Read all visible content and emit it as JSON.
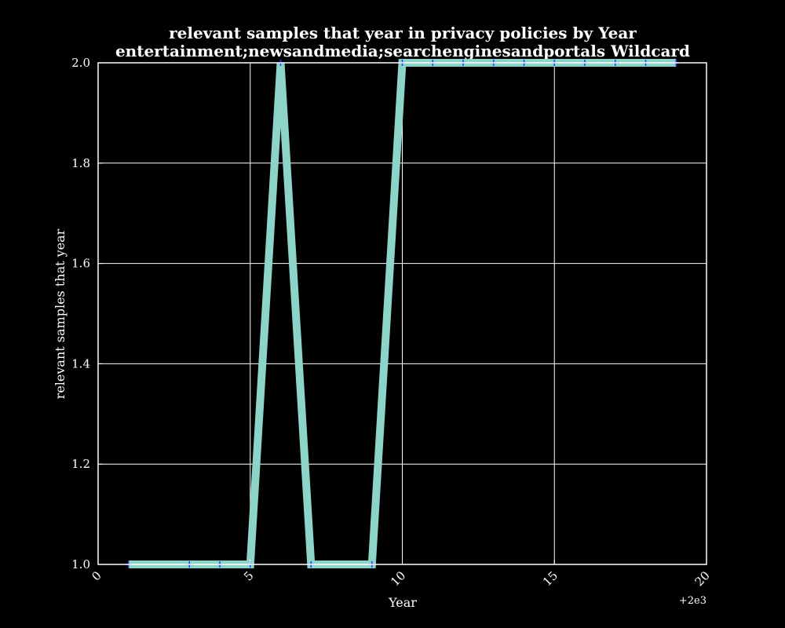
{
  "chart_data": {
    "type": "line",
    "title": "relevant samples that year in privacy policies by Year",
    "subtitle": "entertainment;newsandmedia;searchenginesandportals Wildcard",
    "xlabel": "Year",
    "ylabel": "relevant samples that year",
    "x_offset_label": "+2e3",
    "xlim": [
      0,
      20
    ],
    "ylim": [
      1.0,
      2.0
    ],
    "x_ticks": [
      0,
      5,
      10,
      15,
      20
    ],
    "x_tick_labels": [
      "0",
      "5",
      "10",
      "15",
      "20"
    ],
    "y_ticks": [
      1.0,
      1.2,
      1.4,
      1.6,
      1.8,
      2.0
    ],
    "y_tick_labels": [
      "1.0",
      "1.2",
      "1.4",
      "1.6",
      "1.8",
      "2.0"
    ],
    "grid": true,
    "background_color": "#000000",
    "series": [
      {
        "color": "#8dd3c7",
        "marker_color": "#1f3fff",
        "x": [
          1,
          3,
          4,
          5,
          6,
          7,
          9,
          10,
          11,
          12,
          13,
          14,
          15,
          16,
          17,
          18,
          19
        ],
        "y": [
          1,
          1,
          1,
          1,
          2,
          1,
          1,
          2,
          2,
          2,
          2,
          2,
          2,
          2,
          2,
          2,
          2
        ]
      }
    ]
  }
}
